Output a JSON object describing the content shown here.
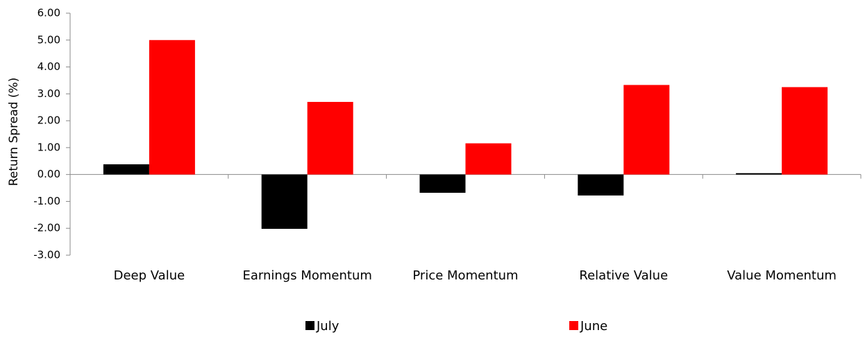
{
  "chart_data": {
    "type": "bar",
    "y_label": "Return Spread (%)",
    "categories": [
      "Deep Value",
      "Earnings Momentum",
      "Price Momentum",
      "Relative Value",
      "Value Momentum"
    ],
    "series": [
      {
        "name": "July",
        "color": "#000000",
        "values": [
          0.38,
          -2.02,
          -0.68,
          -0.78,
          0.05
        ]
      },
      {
        "name": "June",
        "color": "#ff0000",
        "values": [
          5.0,
          2.7,
          1.16,
          3.33,
          3.25
        ]
      }
    ],
    "ylim": [
      -3,
      6
    ],
    "yticks": [
      {
        "value": -3,
        "label": "-3.00"
      },
      {
        "value": -2,
        "label": "-2.00"
      },
      {
        "value": -1,
        "label": "-1.00"
      },
      {
        "value": 0,
        "label": "0.00"
      },
      {
        "value": 1,
        "label": "1.00"
      },
      {
        "value": 2,
        "label": "2.00"
      },
      {
        "value": 3,
        "label": "3.00"
      },
      {
        "value": 4,
        "label": "4.00"
      },
      {
        "value": 5,
        "label": "5.00"
      },
      {
        "value": 6,
        "label": "6.00"
      }
    ],
    "grid": false,
    "legend": "bottom"
  }
}
